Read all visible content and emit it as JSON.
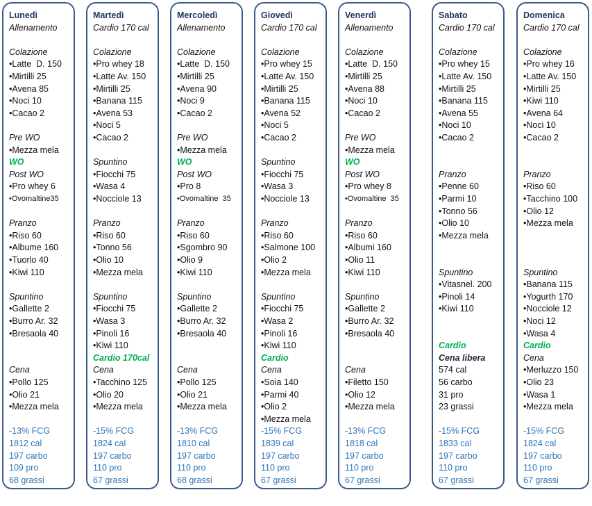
{
  "columns": [
    {
      "day": "Lunedì",
      "plan": "Allenamento",
      "lines": [
        "Colazione",
        "Latte  D. 150",
        "Mirtilli 25",
        "Avena 85",
        "Noci 10",
        "Cacao 2",
        "Pre WO",
        "Mezza mela",
        "WO",
        "Post WO",
        "Pro whey 6",
        "Ovomaltine35",
        "Pranzo",
        "Riso 60",
        "Albume 160",
        "Tuorlo 40",
        "Kiwi 110",
        "Spuntino",
        "Gallette 2",
        "Burro Ar. 32",
        "Bresaola 40",
        "Cena",
        "Pollo 125",
        "Olio 21",
        "Mezza mela",
        "-13% FCG",
        "1812 cal",
        "197 carbo",
        "109 pro",
        "68 grassi"
      ]
    },
    {
      "day": "Martedì",
      "plan": "Cardio 170 cal",
      "lines": [
        "Colazione",
        "Pro whey 18",
        "Latte Av. 150",
        "Mirtilli 25",
        "Banana 115",
        "Avena 53",
        "Noci 5",
        "Cacao 2",
        "Spuntino",
        "Fiocchi 75",
        "Wasa 4",
        "Nocciole 13",
        "Pranzo",
        "Riso 60",
        "Tonno 56",
        "Olio 10",
        "Mezza mela",
        "Spuntino",
        "Fiocchi 75",
        "Wasa 3",
        "Pinoli 16",
        "Kiwi 110",
        "Cardio 170cal",
        "Cena",
        "Tacchino 125",
        "Olio 20",
        "Mezza mela",
        "-15% FCG",
        "1824 cal",
        "197 carbo",
        "110 pro",
        "67 grassi"
      ]
    },
    {
      "day": "Mercoledì",
      "plan": "Allenamento",
      "lines": [
        "Colazione",
        "Latte  D. 150",
        "Mirtilli 25",
        "Avena 90",
        "Noci 9",
        "Cacao 2",
        "Pre WO",
        "Mezza mela",
        "WO",
        "Post WO",
        "Pro 8",
        "Ovomaltine  35",
        "Pranzo",
        "Riso 60",
        "Sgombro 90",
        "Olio 9",
        "Kiwi 110",
        "Spuntino",
        "Gallette 2",
        "Burro Ar. 32",
        "Bresaola 40",
        "Cena",
        "Pollo 125",
        "Olio 21",
        "Mezza mela",
        "-13% FCG",
        "1810 cal",
        "197 carbo",
        "110 pro",
        "68 grassi"
      ]
    },
    {
      "day": "Giovedì",
      "plan": "Cardio 170 cal",
      "lines": [
        "Colazione",
        "Pro whey 15",
        "Latte Av. 150",
        "Mirtilli 25",
        "Banana 115",
        "Avena 52",
        "Noci 5",
        "Cacao 2",
        "Spuntino",
        "Fiocchi 75",
        "Wasa 3",
        "Nocciole 13",
        "Pranzo",
        "Riso 60",
        "Salmone 100",
        "Olio 2",
        "Mezza mela",
        "Spuntino",
        "Fiocchi 75",
        "Wasa 2",
        "Pinoli 16",
        "Kiwi 110",
        "Cardio",
        "Cena",
        "Soia 140",
        "Parmi 40",
        "Olio 2",
        "Mezza mela",
        "-15% FCG",
        "1839 cal",
        "197 carbo",
        "110 pro",
        "67 grassi"
      ]
    },
    {
      "day": "Venerdì",
      "plan": "Allenamento",
      "lines": [
        "Colazione",
        "Latte  D. 150",
        "Mirtilli 25",
        "Avena 88",
        "Noci 10",
        "Cacao 2",
        "Pre WO",
        "Mezza mela",
        "WO",
        "Post WO",
        "Pro whey 8",
        "Ovomaltine  35",
        "Pranzo",
        "Riso 60",
        "Albumi 160",
        "Olio 11",
        "Kiwi 110",
        "Spuntino",
        "Gallette 2",
        "Burro Ar. 32",
        "Bresaola 40",
        "Cena",
        "Filetto 150",
        "Olio 12",
        "Mezza mela",
        "-13% FCG",
        "1818 cal",
        "197 carbo",
        "110 pro",
        "67 grassi"
      ]
    },
    {
      "day": "Sabato",
      "plan": "Cardio 170 cal",
      "lines": [
        "Colazione",
        "Pro whey 15",
        "Latte Av. 150",
        "Mirtilli 25",
        "Banana 115",
        "Avena 55",
        "Noci 10",
        "Cacao 2",
        "Pranzo",
        "Penne 60",
        "Parmi 10",
        "Tonno 56",
        "Olio 10",
        "Mezza mela",
        "Spuntino",
        "Vitasnel. 200",
        "Pinoli 14",
        "Kiwi 110",
        "Cardio",
        "Cena libera",
        "574 cal",
        "56 carbo",
        "31 pro",
        "23 grassi",
        "-15% FCG",
        "1833 cal",
        "197 carbo",
        "110 pro",
        "67 grassi"
      ]
    },
    {
      "day": "Domenica",
      "plan": "Cardio 170 cal",
      "lines": [
        "Colazione",
        "Pro whey 16",
        "Latte Av. 150",
        "Mirtilli 25",
        "Kiwi 110",
        "Avena 64",
        "Noci 10",
        "Cacao 2",
        "Pranzo",
        "Riso 60",
        "Tacchino 100",
        "Olio 12",
        "Mezza mela",
        "Spuntino",
        "Banana 115",
        "Yogurth 170",
        "Nocciole 12",
        "Noci 12",
        "Wasa 4",
        "Cardio",
        "Cena",
        "Merluzzo 150",
        "Olio 23",
        "Wasa 1",
        "Mezza mela",
        "-15% FCG",
        "1824 cal",
        "197 carbo",
        "110 pro",
        "67 grassi"
      ]
    }
  ]
}
